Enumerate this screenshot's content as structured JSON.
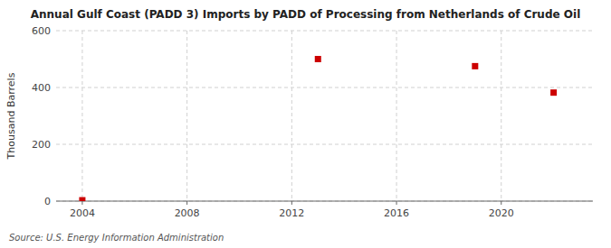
{
  "chart_data": {
    "type": "scatter",
    "title": "Annual Gulf Coast (PADD 3) Imports by PADD of Processing from Netherlands of Crude Oil",
    "ylabel": "Thousand Barrels",
    "annotations": [
      "Source: U.S. Energy Information Administration"
    ],
    "x": [
      2004,
      2013,
      2019,
      2022
    ],
    "values": [
      3,
      500,
      475,
      382
    ],
    "color": "#cc0000",
    "marker": "square",
    "xlim": [
      2003,
      2023.5
    ],
    "ylim": [
      0,
      600
    ],
    "xticks": [
      2004,
      2008,
      2012,
      2016,
      2020
    ],
    "yticks": [
      0,
      200,
      400,
      600
    ],
    "grid": true
  }
}
